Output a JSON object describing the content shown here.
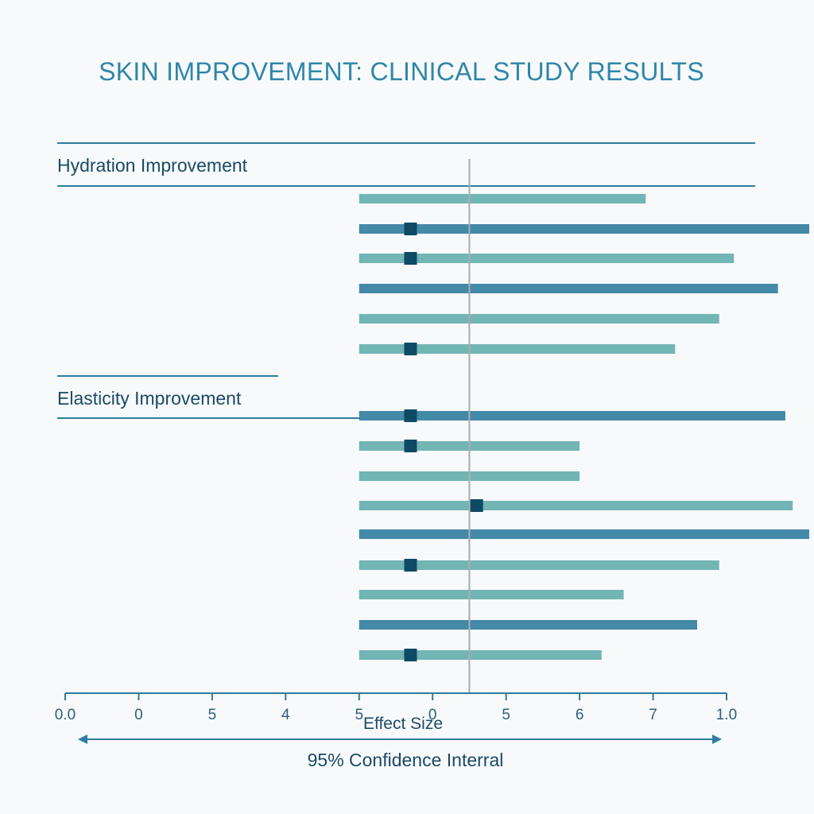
{
  "chart_data": {
    "type": "forest",
    "title": "SKIN IMPROVEMENT: CLINICAL STUDY RESULTS",
    "xlabel": "Effect Size",
    "interval_label": "95% Confidence Interral",
    "x_tick_labels": [
      "0.0",
      "0",
      "5",
      "4",
      "5",
      "0",
      "5",
      "6",
      "7",
      "1.0"
    ],
    "xlim": [
      0,
      9
    ],
    "reference_line": 5.5,
    "groups": [
      {
        "label": "Hydration Improvement",
        "rows": [
          {
            "low": 4.0,
            "high": 7.9,
            "point": null,
            "shade": "light"
          },
          {
            "low": 4.0,
            "high": 10.2,
            "point": 4.7,
            "shade": "dark"
          },
          {
            "low": 4.0,
            "high": 9.1,
            "point": 4.7,
            "shade": "light"
          },
          {
            "low": 4.0,
            "high": 9.7,
            "point": null,
            "shade": "dark"
          },
          {
            "low": 4.0,
            "high": 8.9,
            "point": null,
            "shade": "light"
          },
          {
            "low": 4.0,
            "high": 8.3,
            "point": 4.7,
            "shade": "light"
          }
        ]
      },
      {
        "label": "Elasticity Improvement",
        "rows": [
          {
            "low": 4.0,
            "high": 9.8,
            "point": 4.7,
            "shade": "dark"
          },
          {
            "low": 4.0,
            "high": 7.0,
            "point": 4.7,
            "shade": "light"
          },
          {
            "low": 4.0,
            "high": 7.0,
            "point": null,
            "shade": "light"
          },
          {
            "low": 4.0,
            "high": 9.9,
            "point": 5.6,
            "shade": "light"
          },
          {
            "low": 4.0,
            "high": 10.2,
            "point": null,
            "shade": "dark"
          },
          {
            "low": 4.0,
            "high": 8.9,
            "point": 4.7,
            "shade": "light"
          },
          {
            "low": 4.0,
            "high": 7.6,
            "point": null,
            "shade": "light"
          },
          {
            "low": 4.0,
            "high": 8.6,
            "point": null,
            "shade": "dark"
          },
          {
            "low": 4.0,
            "high": 7.3,
            "point": 4.7,
            "shade": "light"
          }
        ]
      }
    ]
  },
  "colors": {
    "light_bar": "#72b5b5",
    "dark_bar": "#4589a9",
    "point": "#0e4a63",
    "rule": "#2e7da0",
    "reference": "#a8adb0",
    "axis": "#2e7da0"
  }
}
